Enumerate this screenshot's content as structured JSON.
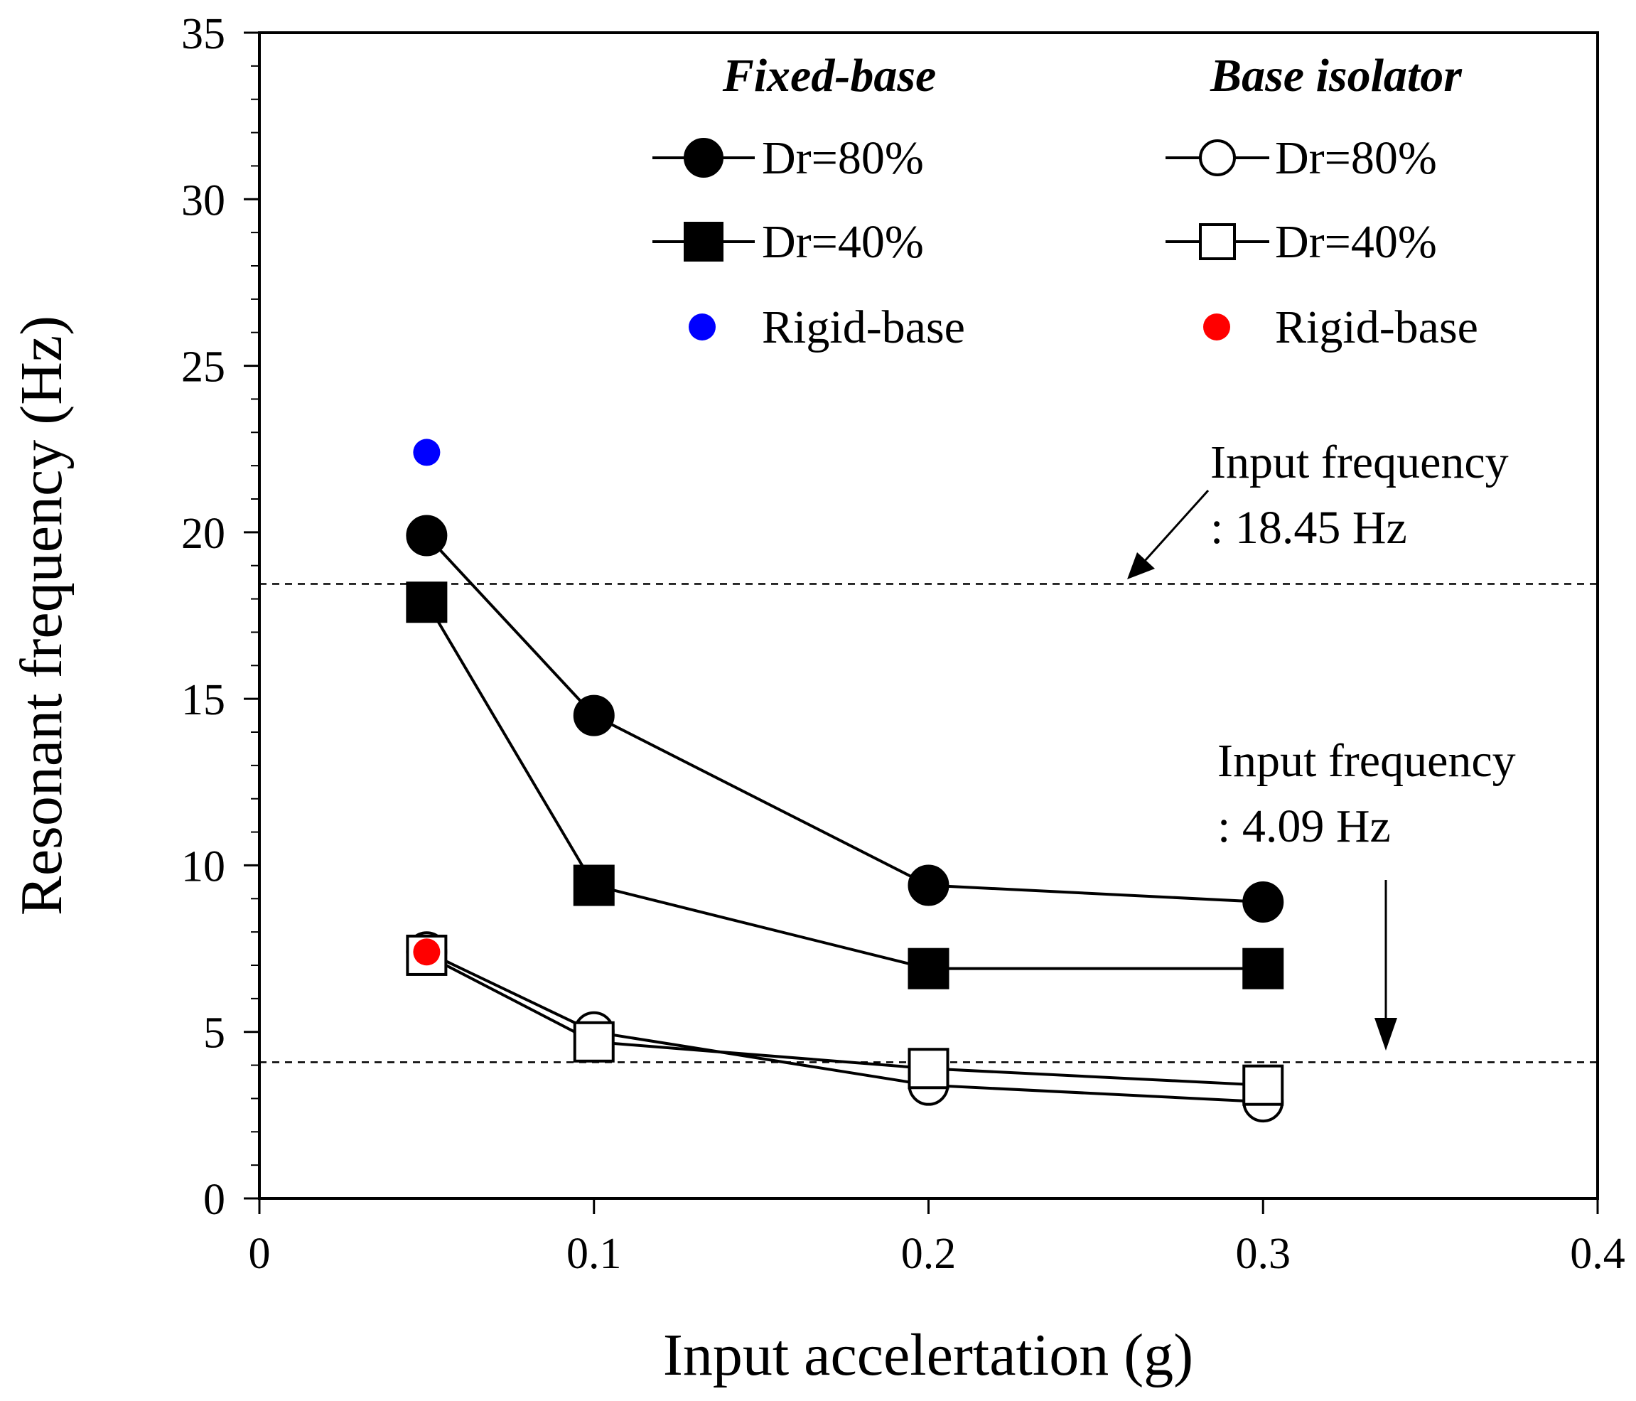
{
  "chart_data": {
    "type": "line",
    "title": "",
    "xlabel": "Input accelertation  (g)",
    "ylabel": "Resonant  frequency  (Hz)",
    "xlim": [
      0,
      0.4
    ],
    "ylim": [
      0,
      35
    ],
    "xticks": [
      0,
      0.1,
      0.2,
      0.3,
      0.4
    ],
    "xtick_labels": [
      "0",
      "0.1",
      "0.2",
      "0.3",
      "0.4"
    ],
    "yticks": [
      0,
      5,
      10,
      15,
      20,
      25,
      30,
      35
    ],
    "ytick_labels": [
      "0",
      "5",
      "10",
      "15",
      "20",
      "25",
      "30",
      "35"
    ],
    "legend_placement": "top-right",
    "legend_groups": [
      {
        "heading": "Fixed-base",
        "entries": [
          "Dr=80%",
          "Dr=40%",
          "Rigid-base"
        ]
      },
      {
        "heading": "Base isolator",
        "entries": [
          "Dr=80%",
          "Dr=40%",
          "Rigid-base"
        ]
      }
    ],
    "series": [
      {
        "name": "Dr=80%",
        "group": "Fixed-base",
        "marker": "circle",
        "fill": "#000000",
        "x": [
          0.05,
          0.1,
          0.2,
          0.3
        ],
        "values": [
          19.9,
          14.5,
          9.4,
          8.9
        ]
      },
      {
        "name": "Dr=40%",
        "group": "Fixed-base",
        "marker": "square",
        "fill": "#000000",
        "x": [
          0.05,
          0.1,
          0.2,
          0.3
        ],
        "values": [
          17.9,
          9.4,
          6.9,
          6.9
        ]
      },
      {
        "name": "Dr=80%",
        "group": "Base isolator",
        "marker": "circle",
        "fill": "#ffffff",
        "x": [
          0.05,
          0.1,
          0.2,
          0.3
        ],
        "values": [
          7.4,
          5.0,
          3.4,
          2.9
        ]
      },
      {
        "name": "Dr=40%",
        "group": "Base isolator",
        "marker": "square",
        "fill": "#ffffff",
        "x": [
          0.05,
          0.1,
          0.2,
          0.3
        ],
        "values": [
          7.3,
          4.7,
          3.9,
          3.4
        ]
      },
      {
        "name": "Rigid-base",
        "group": "Fixed-base",
        "marker": "dot",
        "fill": "#0000ff",
        "x": [
          0.05
        ],
        "values": [
          22.4
        ]
      },
      {
        "name": "Rigid-base",
        "group": "Base isolator",
        "marker": "dot",
        "fill": "#ff0000",
        "x": [
          0.05
        ],
        "values": [
          7.4
        ]
      }
    ],
    "reference_lines": [
      {
        "y": 18.45,
        "label_line1": "Input frequency",
        "label_line2": ": 18.45 Hz"
      },
      {
        "y": 4.09,
        "label_line1": "Input frequency",
        "label_line2": ": 4.09 Hz"
      }
    ]
  }
}
